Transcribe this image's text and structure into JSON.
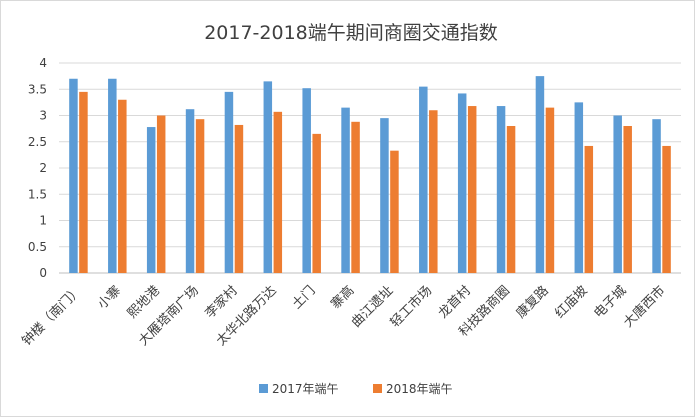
{
  "chart_data": {
    "type": "bar",
    "title": "2017-2018端午期间商圈交通指数",
    "xlabel": "",
    "ylabel": "",
    "ylim": [
      0,
      4
    ],
    "yticks": [
      "0",
      "0.5",
      "1",
      "1.5",
      "2",
      "2.5",
      "3",
      "3.5",
      "4"
    ],
    "grid": true,
    "legend_position": "bottom",
    "categories": [
      "钟楼（南门）",
      "小寨",
      "熙地港",
      "大雁塔南广场",
      "李家村",
      "太华北路万达",
      "土门",
      "寨高",
      "曲江遗址",
      "轻工市场",
      "龙首村",
      "科技路商圈",
      "康复路",
      "红庙坡",
      "电子城",
      "大唐西市"
    ],
    "series": [
      {
        "name": "2017年端午",
        "color": "#5b9bd5",
        "values": [
          3.7,
          3.7,
          2.78,
          3.12,
          3.45,
          3.65,
          3.52,
          3.15,
          2.95,
          3.55,
          3.42,
          3.18,
          3.75,
          3.25,
          3.0,
          2.93
        ]
      },
      {
        "name": "2018年端午",
        "color": "#ed7d31",
        "values": [
          3.45,
          3.3,
          3.0,
          2.93,
          2.82,
          3.07,
          2.65,
          2.88,
          2.33,
          3.1,
          3.18,
          2.8,
          3.15,
          2.42,
          2.8,
          2.42
        ]
      }
    ]
  }
}
